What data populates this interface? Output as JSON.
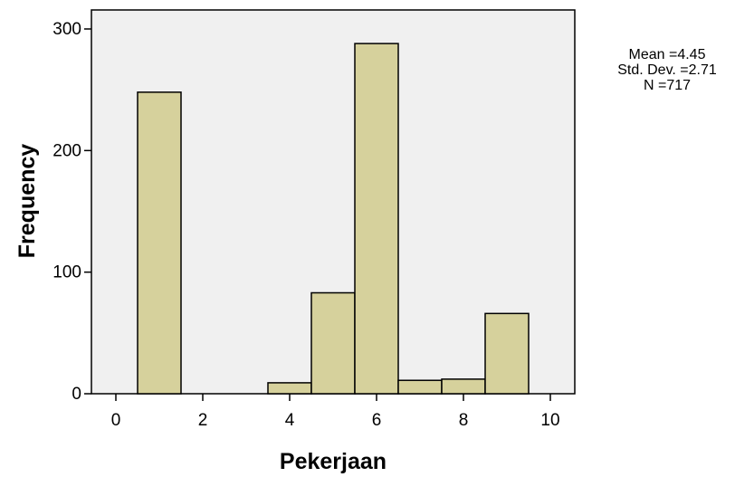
{
  "chart_data": {
    "type": "bar",
    "subtype": "histogram",
    "title": "",
    "xlabel": "Pekerjaan",
    "ylabel": "Frequency",
    "xlim": [
      -0.5,
      10.5
    ],
    "ylim": [
      0,
      320
    ],
    "x_ticks": [
      0,
      2,
      4,
      6,
      8,
      10
    ],
    "y_ticks": [
      0,
      100,
      200,
      300
    ],
    "bin_width": 1,
    "bins": [
      {
        "start": 0.5,
        "end": 1.5,
        "value": 248
      },
      {
        "start": 1.5,
        "end": 2.5,
        "value": 0
      },
      {
        "start": 2.5,
        "end": 3.5,
        "value": 0
      },
      {
        "start": 3.5,
        "end": 4.5,
        "value": 9
      },
      {
        "start": 4.5,
        "end": 5.5,
        "value": 83
      },
      {
        "start": 5.5,
        "end": 6.5,
        "value": 288
      },
      {
        "start": 6.5,
        "end": 7.5,
        "value": 11
      },
      {
        "start": 7.5,
        "end": 8.5,
        "value": 12
      },
      {
        "start": 8.5,
        "end": 9.5,
        "value": 66
      }
    ],
    "grid": false,
    "colors": {
      "bar_fill": "#d6d19c",
      "plot_background": "#f0f0f0",
      "edge": "#000000"
    }
  },
  "stats": {
    "mean": "Mean =4.45",
    "std_dev": "Std. Dev. =2.71",
    "n": "N =717"
  }
}
